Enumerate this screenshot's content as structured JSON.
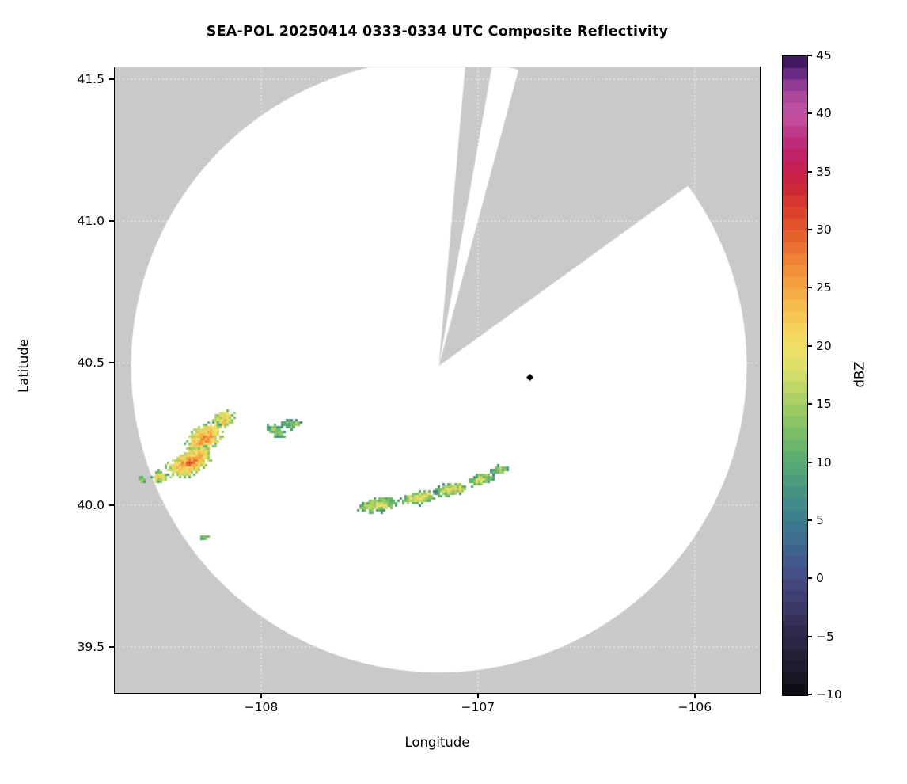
{
  "chart_data": {
    "type": "heatmap",
    "title": "SEA-POL 20250414 0333-0334 UTC Composite Reflectivity",
    "xlabel": "Longitude",
    "ylabel": "Latitude",
    "xlim": [
      -108.675,
      -105.7
    ],
    "ylim": [
      39.338,
      41.542
    ],
    "xticks": [
      -108,
      -107,
      -106
    ],
    "xticklabels": [
      "−108",
      "−107",
      "−106"
    ],
    "yticks": [
      39.5,
      40.0,
      40.5,
      41.0,
      41.5
    ],
    "yticklabels": [
      "39.5",
      "40.0",
      "40.5",
      "41.0",
      "41.5"
    ],
    "grid": true,
    "background_color": "#c9c9c9",
    "scan_area_color": "#ffffff",
    "gridline_color": "rgba(255,255,255,0.8)",
    "radar": {
      "center_lon": -107.18,
      "center_lat": 40.49,
      "radius_lon_deg": 1.42,
      "radius_lat_deg": 1.08
    },
    "blocked_sectors_deg_from_north": [
      {
        "from": 5,
        "to": 10
      },
      {
        "from": 15,
        "to": 54
      }
    ],
    "site_marker": {
      "lon": -106.76,
      "lat": 40.45,
      "shape": "diamond",
      "color": "#000000"
    },
    "colorbar": {
      "label": "dBZ",
      "min": -10,
      "max": 45,
      "ticks": [
        -10,
        -5,
        0,
        5,
        10,
        15,
        20,
        25,
        30,
        35,
        40,
        45
      ],
      "ticklabels": [
        "−10",
        "−5",
        "0",
        "5",
        "10",
        "15",
        "20",
        "25",
        "30",
        "35",
        "40",
        "45"
      ]
    },
    "colormap": [
      [
        -10,
        "#0b0b10"
      ],
      [
        -8,
        "#191827"
      ],
      [
        -6,
        "#27233d"
      ],
      [
        -4,
        "#332e54"
      ],
      [
        -2,
        "#3d3a6c"
      ],
      [
        0,
        "#444a83"
      ],
      [
        2,
        "#405e8e"
      ],
      [
        4,
        "#3d7290"
      ],
      [
        6,
        "#3e868c"
      ],
      [
        8,
        "#47997f"
      ],
      [
        10,
        "#57aa71"
      ],
      [
        12,
        "#71ba67"
      ],
      [
        14,
        "#92c763"
      ],
      [
        16,
        "#b5d364"
      ],
      [
        18,
        "#d9df68"
      ],
      [
        20,
        "#f1e066"
      ],
      [
        22,
        "#f6cd57"
      ],
      [
        24,
        "#f6b54a"
      ],
      [
        26,
        "#f3993e"
      ],
      [
        28,
        "#ed7a33"
      ],
      [
        30,
        "#e45a2b"
      ],
      [
        32,
        "#d83c2a"
      ],
      [
        34,
        "#ca2439"
      ],
      [
        36,
        "#c01e5d"
      ],
      [
        38,
        "#bd2f81"
      ],
      [
        40,
        "#c653a6"
      ],
      [
        42,
        "#a3439a"
      ],
      [
        43,
        "#7c3390"
      ],
      [
        44,
        "#531f74"
      ],
      [
        45,
        "#2f1050"
      ]
    ],
    "echo_regions": [
      {
        "lon": -108.17,
        "lat": 40.3,
        "a": 0.055,
        "b": 0.034,
        "angle": 25,
        "core": 22,
        "edge": 12,
        "seed": 1
      },
      {
        "lon": -108.26,
        "lat": 40.235,
        "a": 0.095,
        "b": 0.052,
        "angle": 35,
        "core": 27,
        "edge": 12,
        "seed": 2
      },
      {
        "lon": -108.33,
        "lat": 40.15,
        "a": 0.115,
        "b": 0.05,
        "angle": 27,
        "core": 28,
        "edge": 12,
        "seed": 3
      },
      {
        "lon": -108.47,
        "lat": 40.1,
        "a": 0.038,
        "b": 0.024,
        "angle": 10,
        "core": 21,
        "edge": 11,
        "seed": 4
      },
      {
        "lon": -108.55,
        "lat": 40.09,
        "a": 0.018,
        "b": 0.013,
        "angle": 0,
        "core": 15,
        "edge": 9,
        "seed": 5
      },
      {
        "lon": -107.93,
        "lat": 40.26,
        "a": 0.05,
        "b": 0.022,
        "angle": -35,
        "core": 15,
        "edge": 8,
        "seed": 6
      },
      {
        "lon": -107.86,
        "lat": 40.285,
        "a": 0.05,
        "b": 0.02,
        "angle": 5,
        "core": 14,
        "edge": 8,
        "seed": 7
      },
      {
        "lon": -107.46,
        "lat": 40.0,
        "a": 0.095,
        "b": 0.03,
        "angle": 6,
        "core": 19,
        "edge": 8,
        "seed": 8
      },
      {
        "lon": -107.27,
        "lat": 40.025,
        "a": 0.09,
        "b": 0.028,
        "angle": 10,
        "core": 21,
        "edge": 8,
        "seed": 9
      },
      {
        "lon": -107.12,
        "lat": 40.055,
        "a": 0.08,
        "b": 0.026,
        "angle": 12,
        "core": 20,
        "edge": 8,
        "seed": 10
      },
      {
        "lon": -106.985,
        "lat": 40.09,
        "a": 0.07,
        "b": 0.024,
        "angle": 16,
        "core": 18,
        "edge": 8,
        "seed": 11
      },
      {
        "lon": -106.9,
        "lat": 40.125,
        "a": 0.045,
        "b": 0.02,
        "angle": 14,
        "core": 16,
        "edge": 8,
        "seed": 12
      },
      {
        "lon": -108.26,
        "lat": 39.885,
        "a": 0.018,
        "b": 0.013,
        "angle": 0,
        "core": 13,
        "edge": 9,
        "seed": 13
      }
    ]
  }
}
